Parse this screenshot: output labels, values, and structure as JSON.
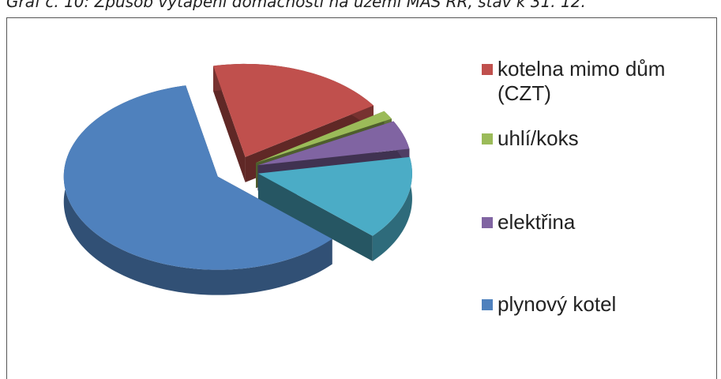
{
  "chart_data": {
    "type": "pie3d",
    "title": "Graf č. 10: Způsob vytápění domácností na území MAS RR, stav k 31. 12.",
    "categories": [
      "kotelna mimo dům (CZT)",
      "uhlí/koks",
      "elektřina",
      null,
      "plynový kotel"
    ],
    "values": [
      19,
      1.5,
      5,
      14.5,
      60
    ],
    "colors": [
      "#c0504d",
      "#9bbb59",
      "#8064a2",
      "#4bacc6",
      "#4f81bd"
    ],
    "legend": "right"
  }
}
